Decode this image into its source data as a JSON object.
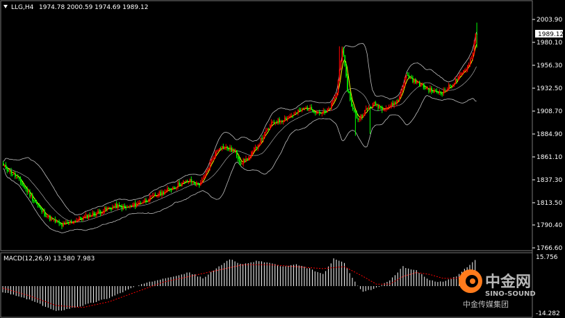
{
  "header": {
    "symbol": "LLG,H4",
    "ohlc": "1974.78 2000.59 1974.69 1989.12"
  },
  "price_axis": {
    "current_price": "1989.12",
    "ticks": [
      "2003.90",
      "1980.10",
      "1956.30",
      "1932.50",
      "1908.70",
      "1884.90",
      "1861.10",
      "1837.30",
      "1813.50",
      "1790.40",
      "1766.60"
    ]
  },
  "macd": {
    "label": "MACD(12,26,9) 13.580 7.983",
    "top_value": "15.756",
    "bottom_value": "-14.282"
  },
  "watermark": {
    "cn_name": "中金网",
    "en_name": "SINO-SOUND",
    "tagline": "中金传媒集团"
  },
  "colors": {
    "background": "#000000",
    "up_candle": "#ff0000",
    "down_candle": "#00ff00",
    "bollinger": "#c0c0c0",
    "moving_average": "#ffff00",
    "macd_histogram": "#ffffff",
    "macd_signal": "#ff0000"
  },
  "chart_data": [
    {
      "type": "candlestick",
      "title": "LLG,H4",
      "ylim": [
        1766.6,
        2003.9
      ],
      "ticks": [
        2003.9,
        1980.1,
        1956.3,
        1932.5,
        1908.7,
        1884.9,
        1861.1,
        1837.3,
        1813.5,
        1790.4,
        1766.6
      ],
      "overlays": [
        "bollinger-bands",
        "moving-average"
      ],
      "close_path": [
        [
          0,
          1852
        ],
        [
          10,
          1840
        ],
        [
          20,
          1822
        ],
        [
          28,
          1806
        ],
        [
          36,
          1796
        ],
        [
          44,
          1790
        ],
        [
          52,
          1794
        ],
        [
          60,
          1798
        ],
        [
          68,
          1802
        ],
        [
          76,
          1806
        ],
        [
          84,
          1810
        ],
        [
          92,
          1808
        ],
        [
          100,
          1812
        ],
        [
          108,
          1817
        ],
        [
          116,
          1822
        ],
        [
          124,
          1827
        ],
        [
          132,
          1833
        ],
        [
          140,
          1836
        ],
        [
          146,
          1832
        ],
        [
          150,
          1838
        ],
        [
          156,
          1858
        ],
        [
          162,
          1872
        ],
        [
          168,
          1870
        ],
        [
          174,
          1866
        ],
        [
          178,
          1855
        ],
        [
          184,
          1860
        ],
        [
          190,
          1872
        ],
        [
          196,
          1885
        ],
        [
          202,
          1897
        ],
        [
          208,
          1899
        ],
        [
          214,
          1903
        ],
        [
          220,
          1907
        ],
        [
          226,
          1912
        ],
        [
          232,
          1910
        ],
        [
          238,
          1907
        ],
        [
          242,
          1907
        ],
        [
          246,
          1915
        ],
        [
          250,
          1928
        ],
        [
          254,
          1975
        ],
        [
          258,
          1932
        ],
        [
          262,
          1910
        ],
        [
          266,
          1900
        ],
        [
          272,
          1910
        ],
        [
          278,
          1916
        ],
        [
          284,
          1912
        ],
        [
          290,
          1914
        ],
        [
          296,
          1920
        ],
        [
          302,
          1946
        ],
        [
          308,
          1940
        ],
        [
          316,
          1933
        ],
        [
          324,
          1928
        ],
        [
          330,
          1929
        ],
        [
          336,
          1936
        ],
        [
          342,
          1944
        ],
        [
          348,
          1956
        ],
        [
          352,
          1969
        ],
        [
          354,
          1989
        ]
      ],
      "last_high": 2000.59,
      "last_low": 1974.69
    },
    {
      "type": "macd",
      "title": "MACD(12,26,9)",
      "macd_value": 13.58,
      "signal_value": 7.983,
      "ylim": [
        -14.282,
        15.756
      ],
      "histogram_path": [
        [
          0,
          -3
        ],
        [
          20,
          -7
        ],
        [
          40,
          -13
        ],
        [
          60,
          -10
        ],
        [
          80,
          -6
        ],
        [
          100,
          0
        ],
        [
          120,
          4
        ],
        [
          140,
          7
        ],
        [
          150,
          4
        ],
        [
          160,
          9
        ],
        [
          170,
          14
        ],
        [
          180,
          11
        ],
        [
          190,
          13
        ],
        [
          200,
          12
        ],
        [
          210,
          10
        ],
        [
          220,
          11
        ],
        [
          230,
          9
        ],
        [
          240,
          6
        ],
        [
          248,
          14
        ],
        [
          256,
          12
        ],
        [
          262,
          4
        ],
        [
          270,
          -3
        ],
        [
          280,
          -1
        ],
        [
          290,
          3
        ],
        [
          300,
          10
        ],
        [
          310,
          8
        ],
        [
          320,
          3
        ],
        [
          330,
          2
        ],
        [
          340,
          5
        ],
        [
          348,
          10
        ],
        [
          354,
          13.58
        ]
      ],
      "signal_path": [
        [
          0,
          -1
        ],
        [
          20,
          -5
        ],
        [
          40,
          -10
        ],
        [
          60,
          -11
        ],
        [
          80,
          -8
        ],
        [
          100,
          -3
        ],
        [
          120,
          2
        ],
        [
          140,
          5
        ],
        [
          160,
          8
        ],
        [
          180,
          11
        ],
        [
          200,
          11
        ],
        [
          220,
          10
        ],
        [
          240,
          9
        ],
        [
          256,
          10
        ],
        [
          270,
          5
        ],
        [
          280,
          1
        ],
        [
          290,
          1
        ],
        [
          300,
          5
        ],
        [
          310,
          7
        ],
        [
          320,
          6
        ],
        [
          330,
          4
        ],
        [
          340,
          4
        ],
        [
          354,
          7.983
        ]
      ]
    }
  ]
}
